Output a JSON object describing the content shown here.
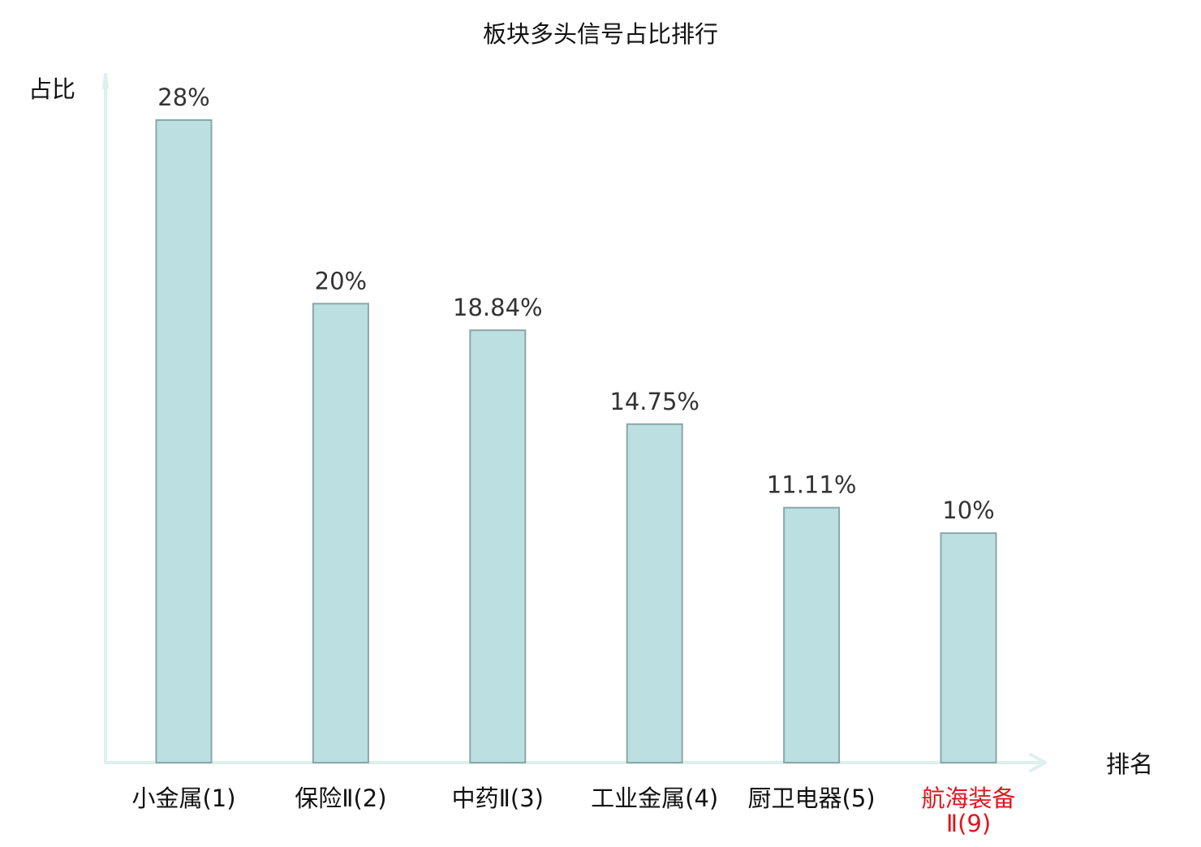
{
  "chart_data": {
    "type": "bar",
    "title": "板块多头信号占比排行",
    "xlabel": "排名",
    "ylabel": "占比",
    "categories": [
      "小金属(1)",
      "保险Ⅱ(2)",
      "中药Ⅱ(3)",
      "工业金属(4)",
      "厨卫电器(5)",
      "航海装备Ⅱ(9)"
    ],
    "category_lines": [
      [
        "小金属(1)"
      ],
      [
        "保险Ⅱ(2)"
      ],
      [
        "中药Ⅱ(3)"
      ],
      [
        "工业金属(4)"
      ],
      [
        "厨卫电器(5)"
      ],
      [
        "航海装备",
        "Ⅱ(9)"
      ]
    ],
    "values": [
      28,
      20,
      18.84,
      14.75,
      11.11,
      10
    ],
    "value_labels": [
      "28%",
      "20%",
      "18.84%",
      "14.75%",
      "11.11%",
      "10%"
    ],
    "highlight_index": 5,
    "ylim": [
      0,
      28
    ],
    "grid": false,
    "colors": {
      "bar_fill": "#bce0e2",
      "bar_stroke": "#8aa7a9",
      "axis": "#dcf0ee",
      "text": "#111111",
      "value_text": "#333333",
      "highlight": "#e0151f"
    }
  }
}
